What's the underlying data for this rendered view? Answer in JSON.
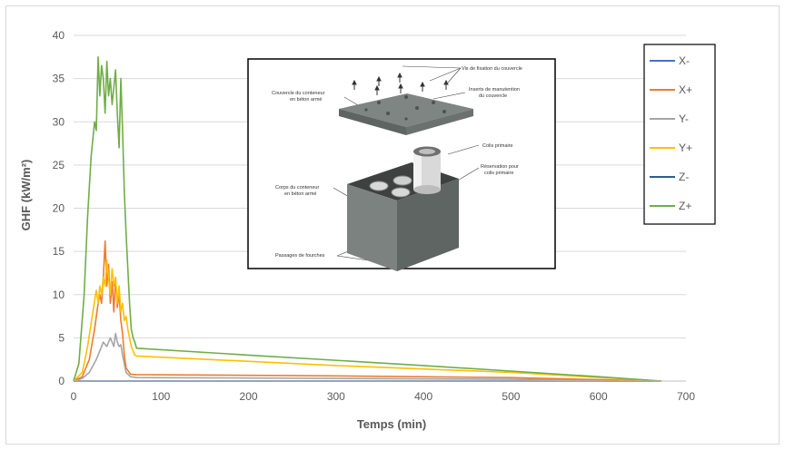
{
  "chart_data": {
    "type": "line",
    "title": "",
    "xlabel": "Temps (min)",
    "ylabel": "GHF  (kW/m²)",
    "xlim": [
      0,
      700
    ],
    "ylim": [
      0,
      40
    ],
    "xticks": [
      0,
      100,
      200,
      300,
      400,
      500,
      600,
      700
    ],
    "yticks": [
      0,
      5,
      10,
      15,
      20,
      25,
      30,
      35,
      40
    ],
    "grid": "horizontal",
    "legend_position": "right",
    "series": [
      {
        "name": "X-",
        "color": "#4472C4",
        "x": [
          0,
          672
        ],
        "y": [
          0,
          0
        ]
      },
      {
        "name": "X+",
        "color": "#ED7D31",
        "x": [
          0,
          10,
          18,
          24,
          28,
          30,
          32,
          34,
          36,
          38,
          40,
          42,
          44,
          46,
          48,
          50,
          52,
          54,
          56,
          58,
          60,
          65,
          72,
          300,
          500,
          672
        ],
        "y": [
          0,
          0.5,
          2.5,
          6,
          9,
          10,
          9,
          12,
          16.2,
          11,
          13.5,
          9,
          11.5,
          8,
          12,
          8.5,
          10,
          7,
          5.5,
          3,
          1.5,
          0.8,
          0.75,
          0.6,
          0.4,
          0
        ]
      },
      {
        "name": "Y-",
        "color": "#A5A5A5",
        "x": [
          0,
          10,
          18,
          26,
          30,
          34,
          38,
          42,
          46,
          48,
          50,
          52,
          54,
          56,
          58,
          60,
          65,
          72,
          300,
          500,
          672
        ],
        "y": [
          0,
          0.3,
          1,
          2.5,
          3.5,
          4.5,
          4,
          5,
          4,
          5.5,
          4.5,
          4,
          4.2,
          3,
          2,
          1,
          0.5,
          0.4,
          0.3,
          0.2,
          0
        ]
      },
      {
        "name": "Y+",
        "color": "#FFC000",
        "x": [
          0,
          10,
          16,
          22,
          26,
          28,
          30,
          32,
          34,
          36,
          38,
          40,
          42,
          44,
          46,
          48,
          50,
          52,
          54,
          56,
          58,
          60,
          62,
          66,
          70,
          72,
          300,
          500,
          672
        ],
        "y": [
          0,
          1,
          4,
          8,
          10.5,
          9,
          11,
          10,
          12,
          11,
          14,
          12,
          10,
          13,
          11,
          12,
          9,
          11,
          8,
          9,
          7,
          7.5,
          6,
          4,
          3,
          2.9,
          1.8,
          1.0,
          0
        ]
      },
      {
        "name": "Z-",
        "color": "#2E5D8F",
        "x": [
          0,
          672
        ],
        "y": [
          0,
          0
        ]
      },
      {
        "name": "Z+",
        "color": "#70AD47",
        "x": [
          0,
          6,
          12,
          16,
          20,
          22,
          24,
          26,
          28,
          30,
          32,
          34,
          36,
          38,
          40,
          42,
          44,
          46,
          48,
          50,
          52,
          54,
          56,
          58,
          60,
          62,
          64,
          66,
          68,
          70,
          72,
          200,
          400,
          600,
          672
        ],
        "y": [
          0,
          2,
          10,
          19,
          26,
          28,
          30,
          29,
          37.5,
          33,
          36.5,
          35,
          31,
          37,
          33,
          35,
          32,
          34,
          36,
          31,
          27,
          35,
          29,
          22,
          17,
          13,
          9,
          6,
          5,
          4.5,
          3.8,
          3.0,
          1.8,
          0.5,
          0
        ]
      }
    ]
  },
  "inset": {
    "labels": {
      "vis": "Vis de fixation du couvercle",
      "inserts": "Inserts de manutention",
      "inserts2": "du couvercle",
      "couvercle": "Couvercle du conteneur",
      "couvercle2": "en béton armé",
      "colis": "Colis primaire",
      "reservation": "Réservation pour",
      "reservation2": "colis primaire",
      "corps": "Corps du conteneur",
      "corps2": "en béton armé",
      "passages": "Passages de fourches"
    }
  }
}
